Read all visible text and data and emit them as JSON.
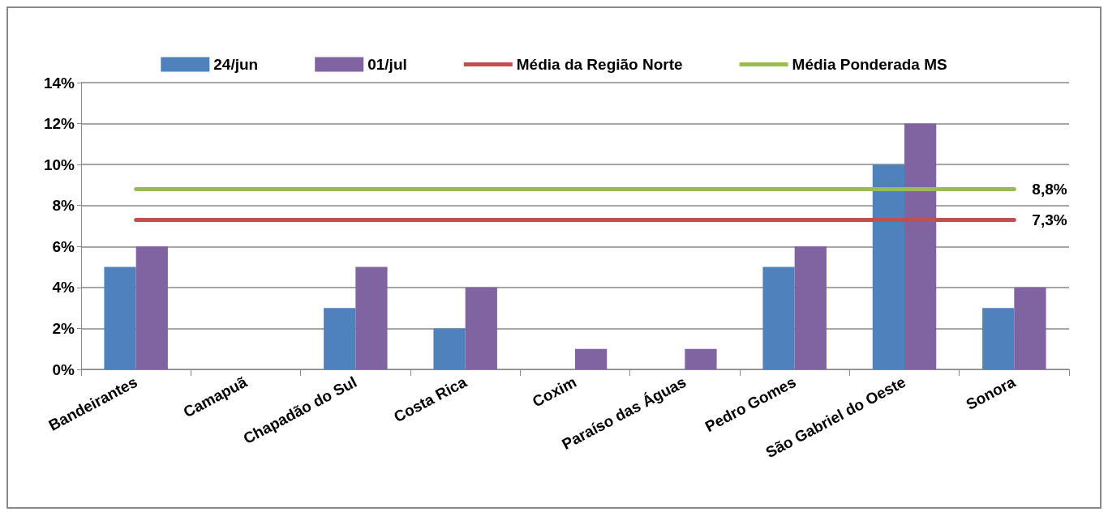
{
  "chart_data": {
    "type": "bar",
    "categories": [
      "Bandeirantes",
      "Camapuã",
      "Chapadão do Sul",
      "Costa Rica",
      "Coxim",
      "Paraíso das Águas",
      "Pedro Gomes",
      "São Gabriel do Oeste",
      "Sonora"
    ],
    "series": [
      {
        "name": "24/jun",
        "color": "#4f81bd",
        "values": [
          5,
          0,
          3,
          2,
          0,
          0,
          5,
          10,
          3
        ]
      },
      {
        "name": "01/jul",
        "color": "#8064a2",
        "values": [
          6,
          0,
          5,
          4,
          1,
          1,
          6,
          12,
          4
        ]
      },
      {
        "name": "Média da Região Norte",
        "type": "line",
        "color": "#c0504d",
        "values": [
          7.3,
          7.3,
          7.3,
          7.3,
          7.3,
          7.3,
          7.3,
          7.3,
          7.3
        ],
        "value_labels": [
          null,
          null,
          null,
          null,
          null,
          null,
          null,
          null,
          "7,3%"
        ]
      },
      {
        "name": "Média Ponderada MS",
        "type": "line",
        "color": "#9bbb59",
        "values": [
          8.8,
          8.8,
          8.8,
          8.8,
          8.8,
          8.8,
          8.8,
          8.8,
          8.8
        ],
        "value_labels": [
          null,
          null,
          null,
          null,
          null,
          null,
          null,
          null,
          "8,8%"
        ]
      }
    ],
    "ylim": [
      0,
      14
    ],
    "yticks": [
      {
        "value": 0,
        "label": "0%"
      },
      {
        "value": 2,
        "label": "2%"
      },
      {
        "value": 4,
        "label": "4%"
      },
      {
        "value": 6,
        "label": "6%"
      },
      {
        "value": 8,
        "label": "8%"
      },
      {
        "value": 10,
        "label": "10%"
      },
      {
        "value": 12,
        "label": "12%"
      },
      {
        "value": 14,
        "label": "14%"
      }
    ],
    "grid": "y",
    "legend": "top",
    "marker": "none",
    "line_style": "solid"
  }
}
